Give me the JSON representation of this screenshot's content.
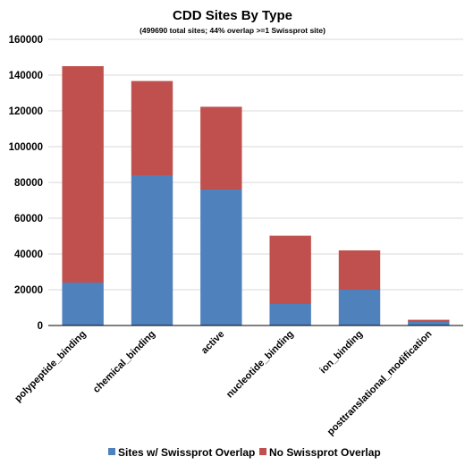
{
  "chart_data": {
    "type": "bar",
    "stacked": true,
    "title": "CDD Sites By Type",
    "subtitle": "(499690 total sites; 44% overlap >=1 Swissprot site)",
    "categories": [
      "polypeptide_binding",
      "chemical_binding",
      "active",
      "nucleotide_binding",
      "ion_binding",
      "posttranslational_modification"
    ],
    "series": [
      {
        "name": "Sites w/ Swissprot Overlap",
        "color": "#4f81bd",
        "values": [
          24000,
          84000,
          76000,
          12000,
          20000,
          2000
        ]
      },
      {
        "name": "No Swissprot Overlap",
        "color": "#c0504d",
        "values": [
          121000,
          52700,
          46300,
          38200,
          22000,
          1200
        ]
      }
    ],
    "ylim": [
      0,
      160000
    ],
    "yticks": [
      "0",
      "20000",
      "40000",
      "60000",
      "80000",
      "100000",
      "120000",
      "140000",
      "160000"
    ],
    "xlabel": "",
    "ylabel": "",
    "grid": true,
    "legend": "bottom"
  }
}
